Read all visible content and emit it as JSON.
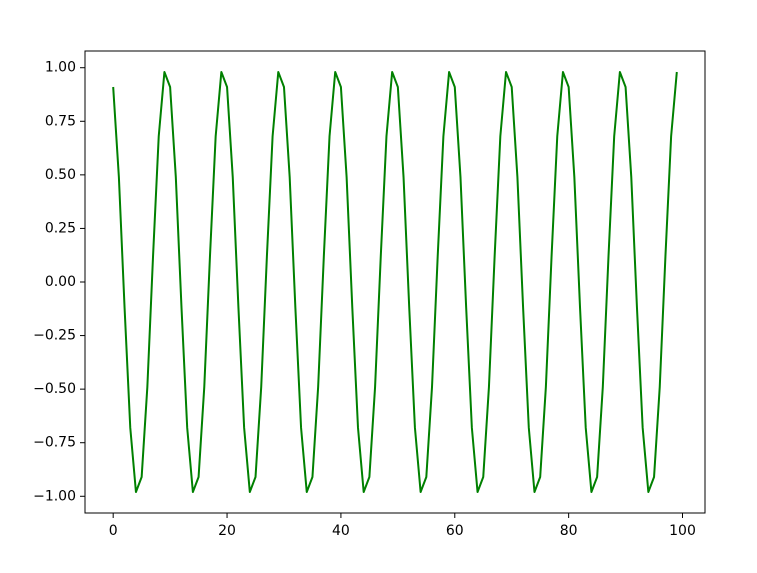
{
  "chart_data": {
    "type": "line",
    "x": [
      0,
      1,
      2,
      3,
      4,
      5,
      6,
      7,
      8,
      9,
      10,
      11,
      12,
      13,
      14,
      15,
      16,
      17,
      18,
      19,
      20,
      21,
      22,
      23,
      24,
      25,
      26,
      27,
      28,
      29,
      30,
      31,
      32,
      33,
      34,
      35,
      36,
      37,
      38,
      39,
      40,
      41,
      42,
      43,
      44,
      45,
      46,
      47,
      48,
      49,
      50,
      51,
      52,
      53,
      54,
      55,
      56,
      57,
      58,
      59,
      60,
      61,
      62,
      63,
      64,
      65,
      66,
      67,
      68,
      69,
      70,
      71,
      72,
      73,
      74,
      75,
      76,
      77,
      78,
      79,
      80,
      81,
      82,
      83,
      84,
      85,
      86,
      87,
      88,
      89,
      90,
      91,
      92,
      93,
      94,
      95,
      96,
      97,
      98,
      99
    ],
    "series": [
      {
        "color": "#008000",
        "values": [
          0.91,
          0.49,
          -0.12,
          -0.68,
          -0.98,
          -0.91,
          -0.49,
          0.12,
          0.68,
          0.98,
          0.91,
          0.49,
          -0.12,
          -0.68,
          -0.98,
          -0.91,
          -0.49,
          0.12,
          0.68,
          0.98,
          0.91,
          0.49,
          -0.12,
          -0.68,
          -0.98,
          -0.91,
          -0.49,
          0.12,
          0.68,
          0.98,
          0.91,
          0.49,
          -0.12,
          -0.68,
          -0.98,
          -0.91,
          -0.49,
          0.12,
          0.68,
          0.98,
          0.91,
          0.49,
          -0.12,
          -0.68,
          -0.98,
          -0.91,
          -0.49,
          0.12,
          0.68,
          0.98,
          0.91,
          0.49,
          -0.12,
          -0.68,
          -0.98,
          -0.91,
          -0.49,
          0.12,
          0.68,
          0.98,
          0.91,
          0.49,
          -0.12,
          -0.68,
          -0.98,
          -0.91,
          -0.49,
          0.12,
          0.68,
          0.98,
          0.91,
          0.49,
          -0.12,
          -0.68,
          -0.98,
          -0.91,
          -0.49,
          0.12,
          0.68,
          0.98,
          0.91,
          0.49,
          -0.12,
          -0.68,
          -0.98,
          -0.91,
          -0.49,
          0.12,
          0.68,
          0.98,
          0.91,
          0.49,
          -0.12,
          -0.68,
          -0.98,
          -0.91,
          -0.49,
          0.12,
          0.68,
          0.98
        ]
      }
    ],
    "xlim": [
      -4.95,
      103.95
    ],
    "xticks": [
      0,
      20,
      40,
      60,
      80,
      100
    ],
    "ylim": [
      -1.078,
      1.078
    ],
    "yticks": [
      {
        "value": -1,
        "label": "−1.00"
      },
      {
        "value": -0.75,
        "label": "−0.75"
      },
      {
        "value": -0.5,
        "label": "−0.50"
      },
      {
        "value": -0.25,
        "label": "−0.25"
      },
      {
        "value": 0,
        "label": "0.00"
      },
      {
        "value": 0.25,
        "label": "0.25"
      },
      {
        "value": 0.5,
        "label": "0.50"
      },
      {
        "value": 0.75,
        "label": "0.75"
      },
      {
        "value": 1,
        "label": "1.00"
      }
    ]
  }
}
